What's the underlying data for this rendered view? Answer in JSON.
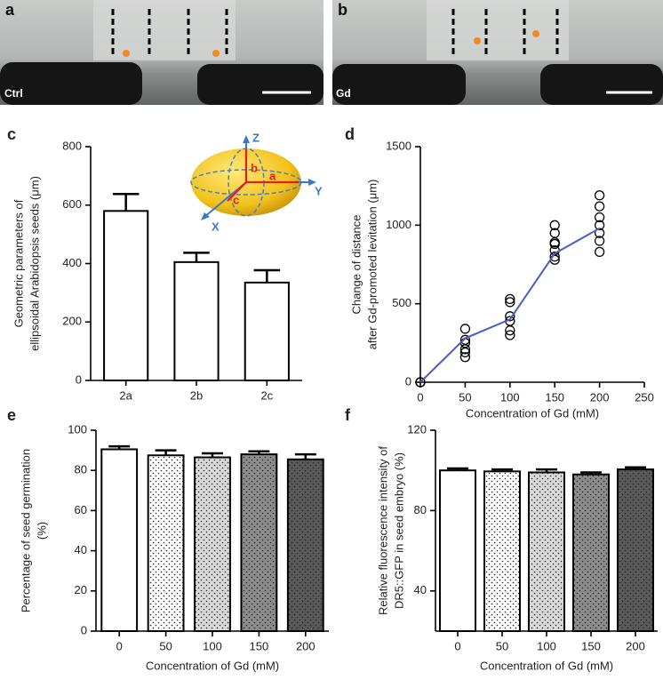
{
  "photos": [
    {
      "panel_label": "a",
      "caption": "Ctrl"
    },
    {
      "panel_label": "b",
      "caption": "Gd"
    }
  ],
  "chart_data": [
    {
      "type": "bar",
      "panel_label": "c",
      "categories": [
        "2a",
        "2b",
        "2c"
      ],
      "values": [
        580,
        405,
        335
      ],
      "errors": [
        58,
        32,
        42
      ],
      "color": "#ffffff",
      "ylim": [
        0,
        800
      ],
      "yticks": [
        0,
        200,
        400,
        600,
        800
      ],
      "ylabel": [
        "Geometric parameters of",
        "ellipsoidal Arabidopsis seeds (μm)"
      ],
      "inset_labels": {
        "z": "Z",
        "y": "Y",
        "x": "X",
        "a": "a",
        "b": "b",
        "c": "c"
      }
    },
    {
      "type": "scatter",
      "panel_label": "d",
      "series": [
        {
          "type": "scatter",
          "color": "#000000",
          "x": [
            0,
            0,
            0,
            50,
            50,
            50,
            50,
            50,
            50,
            100,
            100,
            100,
            100,
            100,
            100,
            150,
            150,
            150,
            150,
            150,
            150,
            150,
            200,
            200,
            200,
            200,
            200,
            200,
            200
          ],
          "values": [
            0,
            0,
            0,
            340,
            270,
            250,
            210,
            190,
            160,
            530,
            510,
            420,
            390,
            330,
            300,
            1000,
            950,
            890,
            880,
            840,
            800,
            780,
            1190,
            1120,
            1050,
            1000,
            950,
            900,
            830
          ]
        },
        {
          "type": "line",
          "color": "#4a5fc1",
          "x": [
            0,
            50,
            100,
            150,
            200
          ],
          "values": [
            0,
            280,
            400,
            820,
            980
          ]
        }
      ],
      "xlim": [
        0,
        250
      ],
      "xticks": [
        0,
        50,
        100,
        150,
        200,
        250
      ],
      "ylim": [
        0,
        1500
      ],
      "yticks": [
        0,
        500,
        1000,
        1500
      ],
      "xlabel": "Concentration of Gd (mM)",
      "ylabel": [
        "Change of distance",
        "after Gd-promoted levitation (μm)"
      ]
    },
    {
      "type": "bar",
      "panel_label": "e",
      "categories": [
        "0",
        "50",
        "100",
        "150",
        "200"
      ],
      "values": [
        90.5,
        87.5,
        86.5,
        88,
        85.5
      ],
      "errors": [
        1.5,
        2.5,
        2,
        1.5,
        2.5
      ],
      "colors": [
        "#ffffff",
        "#ffffff",
        "#d9d9d9",
        "#8c8c8c",
        "#5a5a5a"
      ],
      "patterns": [
        "none",
        "dots",
        "dots",
        "dots",
        "dots"
      ],
      "ylim": [
        0,
        100
      ],
      "yticks": [
        0,
        20,
        40,
        60,
        80,
        100
      ],
      "xlabel": "Concentration of Gd (mM)",
      "ylabel": [
        "Percentage of seed germination",
        "(%)"
      ]
    },
    {
      "type": "bar",
      "panel_label": "f",
      "categories": [
        "0",
        "50",
        "100",
        "150",
        "200"
      ],
      "values": [
        100,
        99.5,
        99,
        98,
        100.5
      ],
      "errors": [
        1,
        1,
        1.5,
        1,
        1
      ],
      "colors": [
        "#ffffff",
        "#ffffff",
        "#d9d9d9",
        "#8c8c8c",
        "#5a5a5a"
      ],
      "patterns": [
        "none",
        "dots",
        "dots",
        "dots",
        "dots"
      ],
      "ylim": [
        20,
        120
      ],
      "yticks": [
        40,
        80,
        120
      ],
      "xlabel": "Concentration of Gd (mM)",
      "ylabel": [
        "Relative fluorescence intensity of",
        "DR5::GFP in seed embryo (%)"
      ]
    }
  ]
}
